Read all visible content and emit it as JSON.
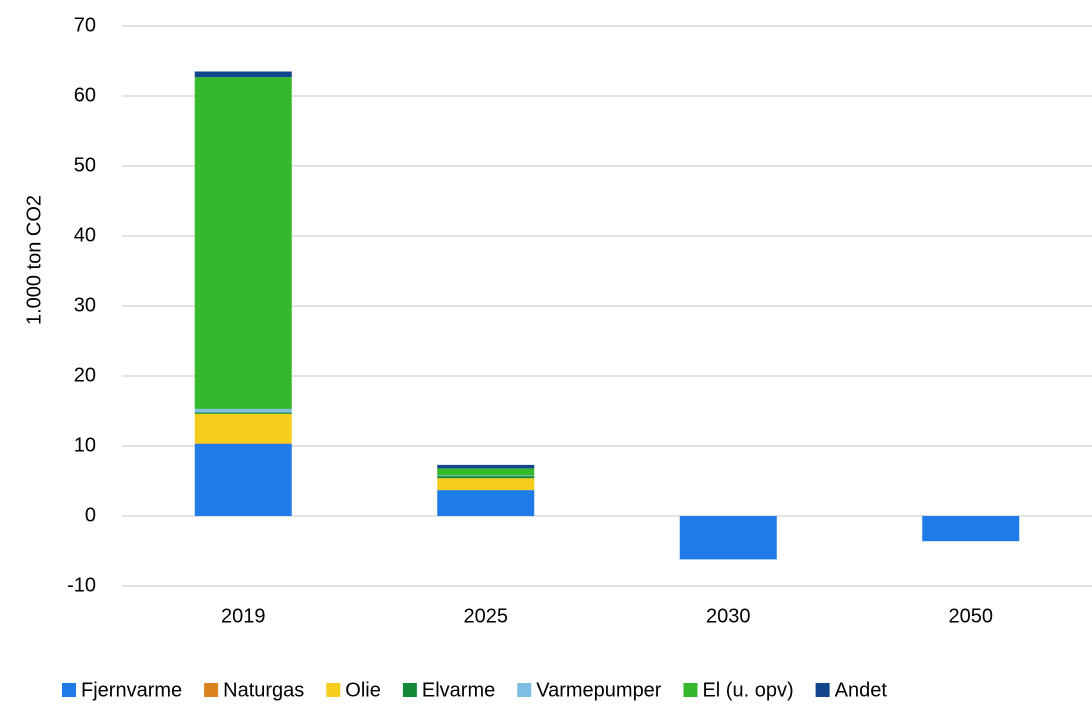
{
  "chart_data": {
    "type": "stacked_bar",
    "y_label": "1.000 ton CO2",
    "categories": [
      "2019",
      "2025",
      "2030",
      "2050"
    ],
    "series": [
      {
        "name": "Fjernvarme",
        "color": "#1f7be8",
        "values": [
          10.3,
          3.7,
          -6.2,
          -3.6
        ]
      },
      {
        "name": "Naturgas",
        "color": "#d9821e",
        "values": [
          0.1,
          0,
          0,
          0
        ]
      },
      {
        "name": "Olie",
        "color": "#f5cd1c",
        "values": [
          4.2,
          1.7,
          0,
          0
        ]
      },
      {
        "name": "Elvarme",
        "color": "#138a36",
        "values": [
          0.2,
          0.3,
          0,
          0
        ]
      },
      {
        "name": "Varmepumper",
        "color": "#7fbde3",
        "values": [
          0.5,
          0.1,
          0,
          0
        ]
      },
      {
        "name": "El (u. opv)",
        "color": "#35b82c",
        "values": [
          47.4,
          1.0,
          0,
          0
        ]
      },
      {
        "name": "Andet",
        "color": "#12468c",
        "values": [
          0.8,
          0.5,
          0,
          0
        ]
      }
    ],
    "ylim": [
      -10,
      70
    ],
    "yticks": [
      -10,
      0,
      10,
      20,
      30,
      40,
      50,
      60,
      70
    ],
    "grid": true
  }
}
